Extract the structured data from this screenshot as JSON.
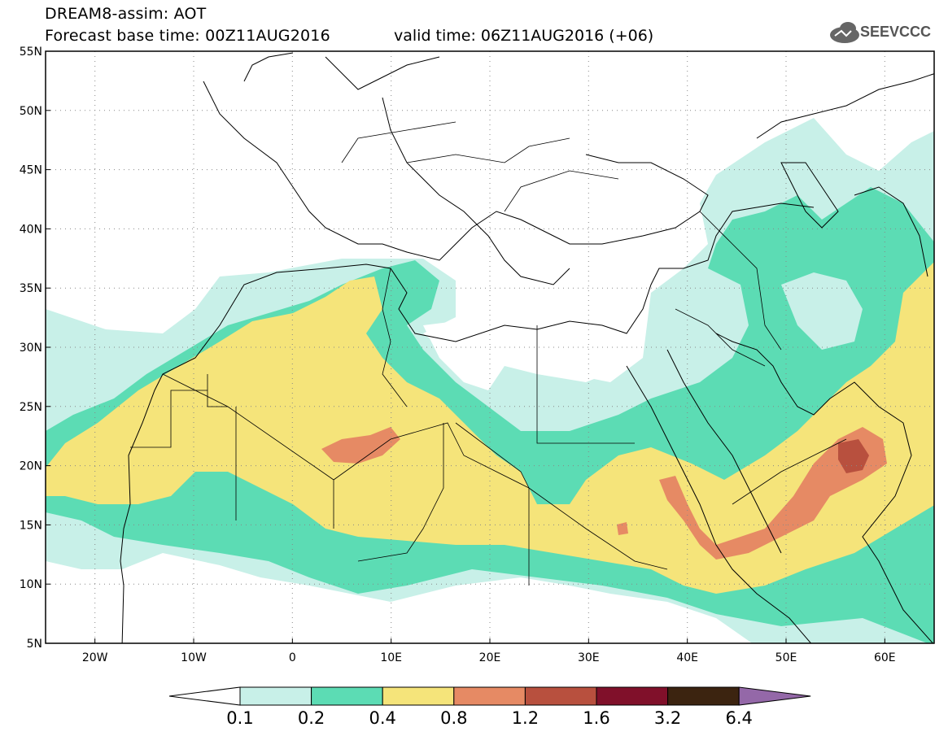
{
  "header": {
    "title": "DREAM8-assim: AOT",
    "forecast_base": "Forecast base time: 00Z11AUG2016",
    "valid_time": "valid time: 06Z11AUG2016 (+06)",
    "logo_text": "SEEVCCC"
  },
  "map": {
    "lon_range": [
      -25,
      65
    ],
    "lat_range": [
      5,
      55
    ],
    "lon_ticks": [
      "20W",
      "10W",
      "0",
      "10E",
      "20E",
      "30E",
      "40E",
      "50E",
      "60E"
    ],
    "lat_ticks": [
      "5N",
      "10N",
      "15N",
      "20N",
      "25N",
      "30N",
      "35N",
      "40N",
      "45N",
      "50N",
      "55N"
    ],
    "gridlines": "dotted"
  },
  "colorbar": {
    "levels": [
      "0.1",
      "0.2",
      "0.4",
      "0.8",
      "1.2",
      "1.6",
      "3.2",
      "6.4"
    ],
    "colors": [
      "#ffffff",
      "#c8f0e8",
      "#5cdcb4",
      "#f5e47a",
      "#e68a64",
      "#b8503e",
      "#80102a",
      "#3c2410",
      "#9468a8"
    ]
  }
}
